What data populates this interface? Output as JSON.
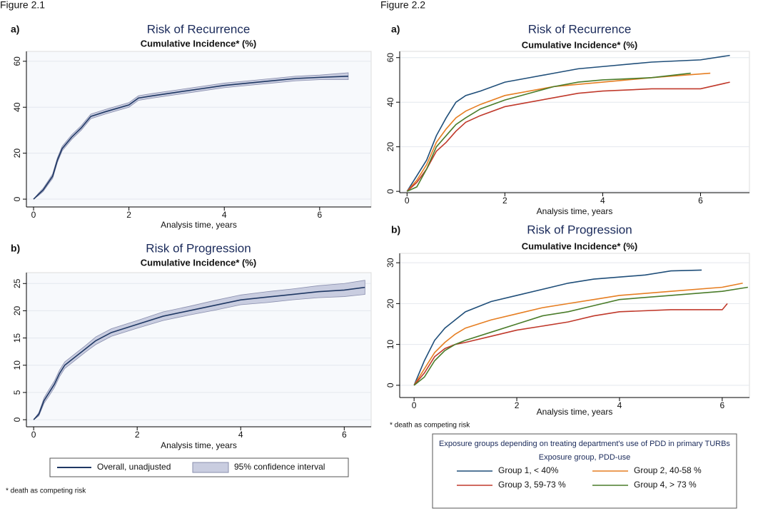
{
  "figures": [
    {
      "label": "Figure 2.1",
      "footnote": "* death as competing risk"
    },
    {
      "label": "Figure 2.2",
      "footnote": "* death as competing risk",
      "legend_title": "Exposure groups depending on treating department's use of PDD in primary TURBs",
      "legend_subtitle": "Exposure group, PDD-use"
    }
  ],
  "chart_data": [
    {
      "type": "line",
      "panel": "a)",
      "title": "Risk of Recurrence",
      "subtitle": "Cumulative Incidence* (%)",
      "xlabel": "Analysis time, years",
      "xlim": [
        -0.15,
        7.08
      ],
      "ylim": [
        -3.4,
        64.3
      ],
      "xticks": [
        0,
        2,
        4,
        6
      ],
      "yticks": [
        0,
        20,
        40,
        60
      ],
      "grid": true,
      "series": [
        {
          "color": "#1f3864",
          "x": [
            0,
            0.1,
            0.2,
            0.3,
            0.4,
            0.5,
            0.6,
            0.8,
            1.0,
            1.2,
            1.5,
            2.0,
            2.2,
            2.5,
            3,
            3.5,
            4,
            4.5,
            5,
            5.5,
            6,
            6.6
          ],
          "values": [
            0,
            2,
            4,
            7,
            10,
            17,
            22,
            27,
            31,
            36,
            38,
            41,
            44,
            45,
            46.5,
            48,
            49.5,
            50.5,
            51.5,
            52.5,
            53,
            53.5
          ],
          "lower": [
            0,
            1.5,
            3.3,
            6.2,
            9,
            16,
            21,
            26,
            30,
            35,
            37,
            40,
            43,
            44,
            45.5,
            47,
            48.5,
            49.5,
            50.5,
            51.5,
            52,
            52
          ],
          "upper": [
            0,
            2.5,
            4.7,
            7.8,
            11,
            18,
            23,
            28,
            32,
            37,
            39,
            42,
            45,
            46,
            47.5,
            49,
            50.5,
            51.5,
            52.5,
            53.5,
            54,
            55
          ]
        }
      ]
    },
    {
      "type": "line",
      "panel": "b)",
      "title": "Risk of Progression",
      "subtitle": "Cumulative Incidence* (%)",
      "xlabel": "Analysis time, years",
      "xlim": [
        -0.14,
        6.52
      ],
      "ylim": [
        -1.3,
        27
      ],
      "xticks": [
        0,
        2,
        4,
        6
      ],
      "yticks": [
        0,
        5,
        10,
        15,
        20,
        25
      ],
      "grid": true,
      "series": [
        {
          "name": "Overall, unadjusted",
          "band_name": "95% confidence interval",
          "color": "#1f3864",
          "x": [
            0,
            0.1,
            0.2,
            0.3,
            0.4,
            0.5,
            0.6,
            0.8,
            1,
            1.2,
            1.5,
            2,
            2.5,
            3,
            3.5,
            4,
            4.5,
            5,
            5.5,
            6,
            6.4
          ],
          "values": [
            0,
            1,
            3.5,
            5,
            6.5,
            8.5,
            10,
            11.5,
            13,
            14.5,
            16,
            17.5,
            19,
            20,
            21,
            22,
            22.5,
            23,
            23.5,
            23.8,
            24.3
          ],
          "lower": [
            0,
            0.7,
            3,
            4.4,
            5.9,
            7.9,
            9.4,
            10.9,
            12.4,
            13.8,
            15.3,
            16.8,
            18.2,
            19.2,
            20.1,
            21.1,
            21.5,
            22,
            22.4,
            22.6,
            23
          ],
          "upper": [
            0,
            1.3,
            4,
            5.6,
            7.1,
            9.1,
            10.6,
            12.1,
            13.6,
            15.2,
            16.7,
            18.2,
            19.8,
            20.8,
            21.9,
            22.9,
            23.5,
            24,
            24.6,
            25,
            25.6
          ]
        }
      ]
    },
    {
      "type": "line",
      "panel": "a)",
      "title": "Risk of Recurrence",
      "subtitle": "Cumulative Incidence* (%)",
      "xlabel": "Analysis time, years",
      "xlim": [
        -0.15,
        7.0
      ],
      "ylim": [
        -0.6,
        62.8
      ],
      "xticks": [
        0,
        2,
        4,
        6
      ],
      "yticks": [
        0,
        20,
        40,
        60
      ],
      "grid": true,
      "series": [
        {
          "color": "#1f4e79",
          "x": [
            0,
            0.2,
            0.4,
            0.6,
            0.8,
            1,
            1.2,
            1.5,
            2,
            2.5,
            3,
            3.5,
            4,
            5,
            6,
            6.6
          ],
          "values": [
            0,
            7,
            14,
            25,
            33,
            40,
            43,
            45,
            49,
            51,
            53,
            55,
            56,
            58,
            59,
            61
          ]
        },
        {
          "color": "#e67e22",
          "x": [
            0,
            0.2,
            0.4,
            0.6,
            0.8,
            1,
            1.2,
            1.5,
            2,
            2.5,
            3,
            3.5,
            4,
            5,
            5.6,
            6.2
          ],
          "values": [
            0,
            5,
            12,
            22,
            28,
            33,
            36,
            39,
            43,
            45,
            47,
            48,
            49,
            51,
            52,
            53
          ]
        },
        {
          "color": "#c0392b",
          "x": [
            0,
            0.2,
            0.4,
            0.6,
            0.8,
            1,
            1.2,
            1.5,
            2,
            2.5,
            3,
            3.5,
            4,
            5,
            6,
            6.6
          ],
          "values": [
            0,
            4,
            10,
            18,
            22,
            27,
            31,
            34,
            38,
            40,
            42,
            44,
            45,
            46,
            46,
            49
          ]
        },
        {
          "color": "#4a7c2a",
          "x": [
            0,
            0.2,
            0.4,
            0.6,
            0.8,
            1,
            1.2,
            1.5,
            2,
            2.5,
            3,
            3.5,
            4,
            5,
            5.8
          ],
          "values": [
            0,
            2,
            10,
            20,
            25,
            30,
            33,
            37,
            41,
            44,
            47,
            49,
            50,
            51,
            53
          ]
        }
      ]
    },
    {
      "type": "line",
      "panel": "b)",
      "title": "Risk of Progression",
      "subtitle": "Cumulative Incidence* (%)",
      "xlabel": "Analysis time, years",
      "xlim": [
        -0.28,
        6.53
      ],
      "ylim": [
        -3,
        32.3
      ],
      "xticks": [
        0,
        2,
        4,
        6
      ],
      "yticks": [
        0,
        10,
        20,
        30
      ],
      "grid": true,
      "series": [
        {
          "name": "Group 1, < 40%",
          "color": "#1f4e79",
          "x": [
            0,
            0.2,
            0.4,
            0.6,
            0.8,
            1,
            1.5,
            2,
            2.5,
            3,
            3.5,
            4,
            4.5,
            5,
            5.6
          ],
          "values": [
            0,
            6,
            11,
            14,
            16,
            18,
            20.5,
            22,
            23.5,
            25,
            26,
            26.5,
            27,
            28,
            28.2
          ]
        },
        {
          "name": "Group 2, 40-58 %",
          "color": "#e67e22",
          "x": [
            0,
            0.2,
            0.4,
            0.6,
            0.8,
            1,
            1.5,
            2,
            2.5,
            3,
            3.5,
            4,
            5,
            6,
            6.4
          ],
          "values": [
            0,
            4,
            8,
            10.5,
            12.5,
            14,
            16,
            17.5,
            19,
            20,
            21,
            22,
            23,
            24,
            25
          ]
        },
        {
          "name": "Group 3, 59-73 %",
          "color": "#c0392b",
          "x": [
            0,
            0.2,
            0.4,
            0.6,
            0.8,
            1,
            1.5,
            2,
            2.5,
            3,
            3.5,
            4,
            5,
            6,
            6.1
          ],
          "values": [
            0,
            3,
            7,
            9,
            10,
            10.5,
            12,
            13.5,
            14.5,
            15.5,
            17,
            18,
            18.5,
            18.5,
            20
          ]
        },
        {
          "name": "Group 4, > 73 %",
          "color": "#4a7c2a",
          "x": [
            0,
            0.2,
            0.4,
            0.6,
            0.8,
            1,
            1.5,
            2,
            2.5,
            3,
            3.5,
            4,
            5,
            6,
            6.5
          ],
          "values": [
            0,
            2,
            6,
            8.5,
            10,
            11,
            13,
            15,
            17,
            18,
            19.5,
            21,
            22,
            23,
            24
          ]
        }
      ]
    }
  ]
}
